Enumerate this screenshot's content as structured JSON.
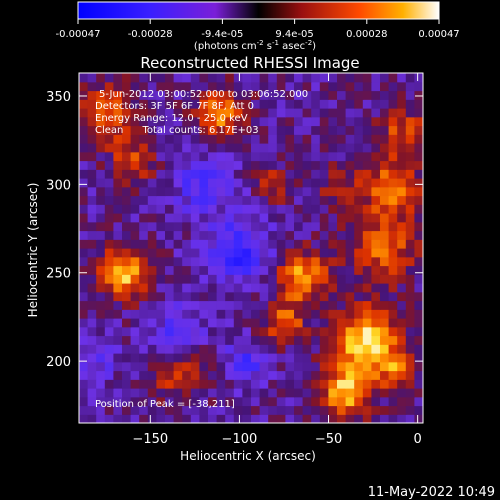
{
  "chart_data": {
    "type": "heatmap",
    "title": "Reconstructed RHESSI Image",
    "xlabel": "Heliocentric X (arcsec)",
    "ylabel": "Heliocentric Y (arcsec)",
    "xlim": [
      -190,
      3
    ],
    "ylim": [
      165,
      363
    ],
    "x_ticks": [
      -150,
      -100,
      -50,
      0
    ],
    "y_ticks": [
      200,
      250,
      300,
      350
    ],
    "colorbar": {
      "min": -0.00047,
      "max": 0.00047,
      "tick_labels": [
        "-0.00047",
        "-0.00028",
        "-9.4e-05",
        "9.4e-05",
        "0.00028",
        "0.00047"
      ],
      "units_label": "(photons cm",
      "units_label_parts": [
        "-2",
        " s",
        "-1",
        " asec",
        "-2",
        ")"
      ]
    },
    "annotations": [
      "5-Jun-2012 03:00:52.000 to 03:06:52.000",
      "Detectors: 3F 5F 6F 7F 8F, Att 0",
      "Energy Range: 12.0 - 25.0 keV",
      "Clean      Total counts: 6.17E+03"
    ],
    "peak_label": "Position of Peak = [-38,211]",
    "peak_position": [
      -38,
      211
    ],
    "map_grid": {
      "nx": 40,
      "ny": 40,
      "seed": 7,
      "blobs": [
        [
          -28,
          211,
          18,
          1.0
        ],
        [
          -40,
          183,
          14,
          0.85
        ],
        [
          -20,
          265,
          20,
          0.55
        ],
        [
          -65,
          248,
          14,
          0.75
        ],
        [
          -75,
          222,
          12,
          0.55
        ],
        [
          -15,
          300,
          16,
          0.6
        ],
        [
          -8,
          330,
          14,
          0.45
        ],
        [
          -175,
          340,
          16,
          0.6
        ],
        [
          -160,
          312,
          12,
          0.45
        ],
        [
          -110,
          340,
          14,
          0.65
        ],
        [
          -165,
          250,
          14,
          0.85
        ],
        [
          -135,
          192,
          14,
          0.4
        ],
        [
          -80,
          300,
          10,
          0.4
        ],
        [
          -45,
          300,
          10,
          0.35
        ],
        [
          -10,
          195,
          10,
          0.5
        ]
      ],
      "holes": [
        [
          -100,
          262,
          18,
          -0.55
        ],
        [
          -135,
          220,
          14,
          -0.35
        ],
        [
          -120,
          300,
          16,
          -0.4
        ],
        [
          -95,
          200,
          12,
          -0.4
        ],
        [
          -180,
          200,
          12,
          -0.25
        ]
      ]
    }
  },
  "footer": {
    "timestamp": "11-May-2022 10:49"
  },
  "colors": {
    "background": "#000000",
    "text": "#ffffff"
  }
}
